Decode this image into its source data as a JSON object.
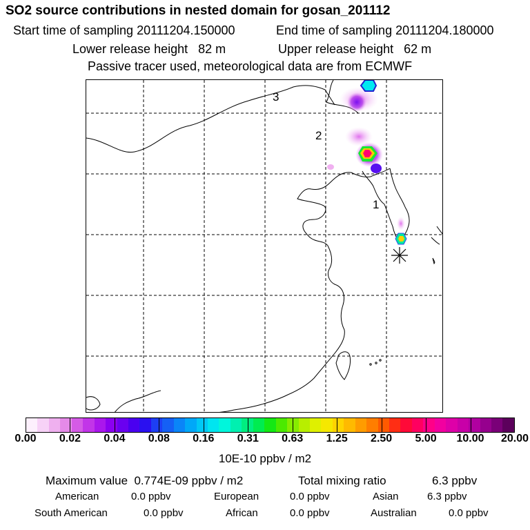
{
  "header": {
    "title": "SO2 source contributions in nested domain for gosan_201112",
    "start_time": "Start time of sampling 20111204.150000",
    "end_time": "End time of sampling 20111204.180000",
    "lower_height": "Lower release height   82 m",
    "upper_height": "Upper release height   62 m",
    "tracer_note": "Passive tracer used, meteorological data are from ECMWF"
  },
  "map": {
    "region_labels": [
      "1",
      "2",
      "3"
    ],
    "marker_icon": "asterisk-station-marker",
    "colors": {
      "coast": "#000000",
      "grid": "#000000"
    }
  },
  "colorbar": {
    "tick_labels": [
      "0.00",
      "0.02",
      "0.04",
      "0.08",
      "0.16",
      "0.31",
      "0.63",
      "1.25",
      "2.50",
      "5.00",
      "10.00",
      "20.00"
    ],
    "unit": "10E-10 ppbv / m2",
    "colors": [
      "#fdf0fd",
      "#f7d2f7",
      "#efb0ef",
      "#e58ae8",
      "#d55be6",
      "#c235e8",
      "#aa17ec",
      "#8b00f0",
      "#6a00f0",
      "#4a00f0",
      "#2a10f0",
      "#1d3ff3",
      "#1560f5",
      "#0a85f8",
      "#00a8f8",
      "#00c8f6",
      "#00e5f0",
      "#00f6dc",
      "#00f0b0",
      "#00ee80",
      "#00ec50",
      "#14e814",
      "#4cea00",
      "#86ec00",
      "#b8ee00",
      "#dff000",
      "#f5e800",
      "#ffd400",
      "#ffba00",
      "#ff9c00",
      "#ff7e00",
      "#ff5a00",
      "#ff2e14",
      "#ff0a38",
      "#ff0060",
      "#ff0088",
      "#f200a0",
      "#de00a8",
      "#c800a8",
      "#b000a0",
      "#96008e",
      "#7a0078",
      "#5c005c"
    ]
  },
  "footer": {
    "max_value_text": "Maximum value  0.774E-09 ppbv / m2",
    "total_mixing_label": "Total mixing ratio",
    "total_mixing_value": "6.3 ppbv",
    "regions": [
      {
        "name": "American",
        "value": "0.0 ppbv"
      },
      {
        "name": "European",
        "value": "0.0 ppbv"
      },
      {
        "name": "Asian",
        "value": "6.3 ppbv"
      },
      {
        "name": "South American",
        "value": "0.0 ppbv"
      },
      {
        "name": "African",
        "value": "0.0 ppbv"
      },
      {
        "name": "Australian",
        "value": "0.0 ppbv"
      }
    ]
  }
}
